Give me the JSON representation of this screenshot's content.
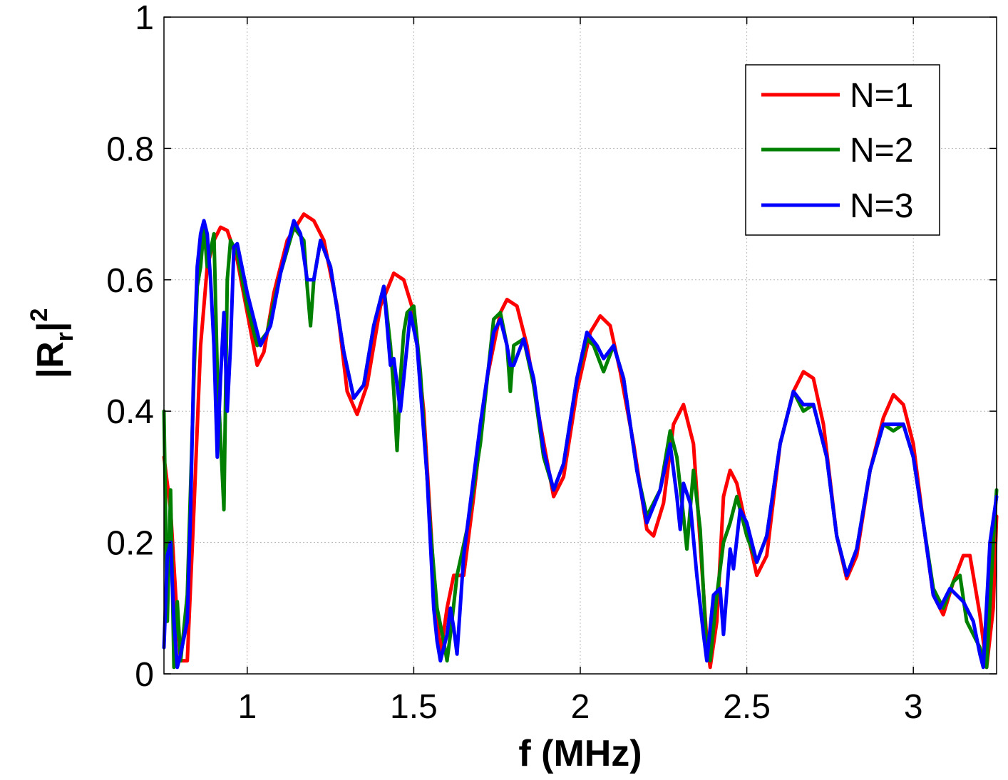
{
  "chart_data": {
    "type": "line",
    "xlabel": "f (MHz)",
    "ylabel": {
      "base": "|R",
      "sub": "r",
      "tail": "|",
      "sup": "2"
    },
    "xlim": [
      0.75,
      3.25
    ],
    "ylim": [
      0,
      1
    ],
    "xticks": [
      1,
      1.5,
      2,
      2.5,
      3
    ],
    "xtick_labels": [
      "1",
      "1.5",
      "2",
      "2.5",
      "3"
    ],
    "yticks": [
      0,
      0.2,
      0.4,
      0.6,
      0.8,
      1
    ],
    "ytick_labels": [
      "0",
      "0.2",
      "0.4",
      "0.6",
      "0.8",
      "1"
    ],
    "grid": true,
    "legend_position": "top-right",
    "series": [
      {
        "name": "N=1",
        "color": "#ff0000",
        "points": [
          [
            0.75,
            0.33
          ],
          [
            0.77,
            0.25
          ],
          [
            0.79,
            0.08
          ],
          [
            0.8,
            0.02
          ],
          [
            0.82,
            0.02
          ],
          [
            0.84,
            0.25
          ],
          [
            0.86,
            0.5
          ],
          [
            0.88,
            0.62
          ],
          [
            0.9,
            0.66
          ],
          [
            0.92,
            0.68
          ],
          [
            0.94,
            0.675
          ],
          [
            0.97,
            0.63
          ],
          [
            1.0,
            0.55
          ],
          [
            1.03,
            0.47
          ],
          [
            1.05,
            0.49
          ],
          [
            1.08,
            0.58
          ],
          [
            1.12,
            0.66
          ],
          [
            1.17,
            0.7
          ],
          [
            1.2,
            0.69
          ],
          [
            1.23,
            0.66
          ],
          [
            1.27,
            0.56
          ],
          [
            1.3,
            0.43
          ],
          [
            1.33,
            0.395
          ],
          [
            1.36,
            0.44
          ],
          [
            1.4,
            0.56
          ],
          [
            1.44,
            0.61
          ],
          [
            1.47,
            0.6
          ],
          [
            1.5,
            0.55
          ],
          [
            1.53,
            0.4
          ],
          [
            1.56,
            0.15
          ],
          [
            1.58,
            0.03
          ],
          [
            1.6,
            0.1
          ],
          [
            1.62,
            0.15
          ],
          [
            1.65,
            0.15
          ],
          [
            1.68,
            0.27
          ],
          [
            1.72,
            0.45
          ],
          [
            1.76,
            0.55
          ],
          [
            1.78,
            0.57
          ],
          [
            1.81,
            0.56
          ],
          [
            1.84,
            0.5
          ],
          [
            1.88,
            0.38
          ],
          [
            1.92,
            0.27
          ],
          [
            1.95,
            0.3
          ],
          [
            1.99,
            0.43
          ],
          [
            2.03,
            0.52
          ],
          [
            2.06,
            0.545
          ],
          [
            2.09,
            0.53
          ],
          [
            2.12,
            0.46
          ],
          [
            2.16,
            0.35
          ],
          [
            2.2,
            0.22
          ],
          [
            2.22,
            0.21
          ],
          [
            2.25,
            0.26
          ],
          [
            2.28,
            0.38
          ],
          [
            2.31,
            0.41
          ],
          [
            2.34,
            0.35
          ],
          [
            2.36,
            0.2
          ],
          [
            2.38,
            0.05
          ],
          [
            2.39,
            0.01
          ],
          [
            2.41,
            0.08
          ],
          [
            2.43,
            0.27
          ],
          [
            2.45,
            0.31
          ],
          [
            2.47,
            0.29
          ],
          [
            2.5,
            0.22
          ],
          [
            2.53,
            0.15
          ],
          [
            2.56,
            0.18
          ],
          [
            2.6,
            0.35
          ],
          [
            2.64,
            0.43
          ],
          [
            2.67,
            0.46
          ],
          [
            2.7,
            0.45
          ],
          [
            2.73,
            0.38
          ],
          [
            2.77,
            0.21
          ],
          [
            2.8,
            0.145
          ],
          [
            2.83,
            0.18
          ],
          [
            2.87,
            0.31
          ],
          [
            2.91,
            0.39
          ],
          [
            2.94,
            0.425
          ],
          [
            2.97,
            0.41
          ],
          [
            3.0,
            0.35
          ],
          [
            3.03,
            0.23
          ],
          [
            3.06,
            0.12
          ],
          [
            3.09,
            0.09
          ],
          [
            3.12,
            0.14
          ],
          [
            3.15,
            0.18
          ],
          [
            3.17,
            0.18
          ],
          [
            3.2,
            0.09
          ],
          [
            3.22,
            0.01
          ],
          [
            3.24,
            0.1
          ],
          [
            3.25,
            0.24
          ]
        ]
      },
      {
        "name": "N=2",
        "color": "#008000",
        "points": [
          [
            0.75,
            0.4
          ],
          [
            0.76,
            0.08
          ],
          [
            0.77,
            0.28
          ],
          [
            0.78,
            0.01
          ],
          [
            0.79,
            0.11
          ],
          [
            0.8,
            0.02
          ],
          [
            0.82,
            0.12
          ],
          [
            0.84,
            0.45
          ],
          [
            0.85,
            0.59
          ],
          [
            0.86,
            0.62
          ],
          [
            0.87,
            0.68
          ],
          [
            0.88,
            0.62
          ],
          [
            0.9,
            0.67
          ],
          [
            0.91,
            0.46
          ],
          [
            0.92,
            0.36
          ],
          [
            0.93,
            0.25
          ],
          [
            0.94,
            0.6
          ],
          [
            0.95,
            0.66
          ],
          [
            0.96,
            0.65
          ],
          [
            0.97,
            0.64
          ],
          [
            1.0,
            0.56
          ],
          [
            1.03,
            0.5
          ],
          [
            1.06,
            0.52
          ],
          [
            1.1,
            0.61
          ],
          [
            1.14,
            0.68
          ],
          [
            1.17,
            0.66
          ],
          [
            1.18,
            0.59
          ],
          [
            1.19,
            0.53
          ],
          [
            1.2,
            0.6
          ],
          [
            1.22,
            0.66
          ],
          [
            1.25,
            0.62
          ],
          [
            1.29,
            0.49
          ],
          [
            1.32,
            0.42
          ],
          [
            1.35,
            0.44
          ],
          [
            1.38,
            0.53
          ],
          [
            1.41,
            0.59
          ],
          [
            1.43,
            0.5
          ],
          [
            1.44,
            0.43
          ],
          [
            1.45,
            0.34
          ],
          [
            1.46,
            0.45
          ],
          [
            1.47,
            0.52
          ],
          [
            1.48,
            0.55
          ],
          [
            1.5,
            0.56
          ],
          [
            1.52,
            0.46
          ],
          [
            1.55,
            0.22
          ],
          [
            1.57,
            0.1
          ],
          [
            1.59,
            0.05
          ],
          [
            1.6,
            0.02
          ],
          [
            1.61,
            0.06
          ],
          [
            1.63,
            0.15
          ],
          [
            1.66,
            0.22
          ],
          [
            1.7,
            0.35
          ],
          [
            1.74,
            0.54
          ],
          [
            1.76,
            0.55
          ],
          [
            1.78,
            0.5
          ],
          [
            1.79,
            0.43
          ],
          [
            1.8,
            0.5
          ],
          [
            1.83,
            0.51
          ],
          [
            1.86,
            0.44
          ],
          [
            1.89,
            0.33
          ],
          [
            1.92,
            0.28
          ],
          [
            1.95,
            0.32
          ],
          [
            1.99,
            0.45
          ],
          [
            2.02,
            0.51
          ],
          [
            2.04,
            0.5
          ],
          [
            2.07,
            0.46
          ],
          [
            2.1,
            0.5
          ],
          [
            2.13,
            0.45
          ],
          [
            2.17,
            0.31
          ],
          [
            2.2,
            0.24
          ],
          [
            2.24,
            0.28
          ],
          [
            2.27,
            0.37
          ],
          [
            2.29,
            0.33
          ],
          [
            2.31,
            0.24
          ],
          [
            2.32,
            0.19
          ],
          [
            2.34,
            0.31
          ],
          [
            2.36,
            0.22
          ],
          [
            2.38,
            0.03
          ],
          [
            2.39,
            0.02
          ],
          [
            2.41,
            0.12
          ],
          [
            2.43,
            0.2
          ],
          [
            2.45,
            0.23
          ],
          [
            2.47,
            0.27
          ],
          [
            2.5,
            0.21
          ],
          [
            2.53,
            0.17
          ],
          [
            2.56,
            0.21
          ],
          [
            2.6,
            0.35
          ],
          [
            2.64,
            0.43
          ],
          [
            2.67,
            0.4
          ],
          [
            2.7,
            0.41
          ],
          [
            2.74,
            0.33
          ],
          [
            2.77,
            0.21
          ],
          [
            2.8,
            0.15
          ],
          [
            2.83,
            0.19
          ],
          [
            2.87,
            0.31
          ],
          [
            2.91,
            0.38
          ],
          [
            2.94,
            0.37
          ],
          [
            2.97,
            0.38
          ],
          [
            3.0,
            0.33
          ],
          [
            3.03,
            0.23
          ],
          [
            3.06,
            0.13
          ],
          [
            3.09,
            0.1
          ],
          [
            3.12,
            0.14
          ],
          [
            3.14,
            0.15
          ],
          [
            3.16,
            0.08
          ],
          [
            3.18,
            0.06
          ],
          [
            3.2,
            0.04
          ],
          [
            3.22,
            0.01
          ],
          [
            3.24,
            0.2
          ],
          [
            3.25,
            0.28
          ]
        ]
      },
      {
        "name": "N=3",
        "color": "#0000ff",
        "points": [
          [
            0.75,
            0.04
          ],
          [
            0.76,
            0.18
          ],
          [
            0.77,
            0.2
          ],
          [
            0.78,
            0.08
          ],
          [
            0.79,
            0.01
          ],
          [
            0.8,
            0.03
          ],
          [
            0.82,
            0.08
          ],
          [
            0.83,
            0.25
          ],
          [
            0.84,
            0.48
          ],
          [
            0.85,
            0.62
          ],
          [
            0.86,
            0.67
          ],
          [
            0.87,
            0.69
          ],
          [
            0.88,
            0.67
          ],
          [
            0.89,
            0.6
          ],
          [
            0.9,
            0.5
          ],
          [
            0.91,
            0.33
          ],
          [
            0.92,
            0.45
          ],
          [
            0.93,
            0.55
          ],
          [
            0.94,
            0.4
          ],
          [
            0.95,
            0.5
          ],
          [
            0.96,
            0.65
          ],
          [
            0.97,
            0.655
          ],
          [
            1.0,
            0.58
          ],
          [
            1.04,
            0.5
          ],
          [
            1.07,
            0.53
          ],
          [
            1.1,
            0.61
          ],
          [
            1.14,
            0.69
          ],
          [
            1.16,
            0.67
          ],
          [
            1.18,
            0.6
          ],
          [
            1.2,
            0.6
          ],
          [
            1.22,
            0.66
          ],
          [
            1.25,
            0.62
          ],
          [
            1.29,
            0.49
          ],
          [
            1.32,
            0.42
          ],
          [
            1.35,
            0.44
          ],
          [
            1.38,
            0.53
          ],
          [
            1.41,
            0.59
          ],
          [
            1.43,
            0.47
          ],
          [
            1.44,
            0.48
          ],
          [
            1.45,
            0.44
          ],
          [
            1.46,
            0.4
          ],
          [
            1.48,
            0.5
          ],
          [
            1.49,
            0.55
          ],
          [
            1.51,
            0.5
          ],
          [
            1.54,
            0.3
          ],
          [
            1.56,
            0.1
          ],
          [
            1.57,
            0.05
          ],
          [
            1.58,
            0.02
          ],
          [
            1.6,
            0.06
          ],
          [
            1.61,
            0.1
          ],
          [
            1.62,
            0.07
          ],
          [
            1.63,
            0.03
          ],
          [
            1.65,
            0.18
          ],
          [
            1.7,
            0.38
          ],
          [
            1.74,
            0.52
          ],
          [
            1.76,
            0.54
          ],
          [
            1.78,
            0.5
          ],
          [
            1.79,
            0.47
          ],
          [
            1.8,
            0.47
          ],
          [
            1.83,
            0.51
          ],
          [
            1.86,
            0.45
          ],
          [
            1.89,
            0.34
          ],
          [
            1.92,
            0.28
          ],
          [
            1.95,
            0.32
          ],
          [
            1.99,
            0.45
          ],
          [
            2.02,
            0.52
          ],
          [
            2.05,
            0.5
          ],
          [
            2.07,
            0.48
          ],
          [
            2.1,
            0.5
          ],
          [
            2.13,
            0.45
          ],
          [
            2.17,
            0.31
          ],
          [
            2.2,
            0.23
          ],
          [
            2.24,
            0.28
          ],
          [
            2.27,
            0.35
          ],
          [
            2.29,
            0.27
          ],
          [
            2.3,
            0.22
          ],
          [
            2.31,
            0.29
          ],
          [
            2.33,
            0.26
          ],
          [
            2.35,
            0.15
          ],
          [
            2.37,
            0.06
          ],
          [
            2.38,
            0.02
          ],
          [
            2.4,
            0.12
          ],
          [
            2.42,
            0.13
          ],
          [
            2.43,
            0.06
          ],
          [
            2.45,
            0.19
          ],
          [
            2.46,
            0.16
          ],
          [
            2.48,
            0.25
          ],
          [
            2.5,
            0.23
          ],
          [
            2.53,
            0.17
          ],
          [
            2.56,
            0.21
          ],
          [
            2.6,
            0.35
          ],
          [
            2.64,
            0.43
          ],
          [
            2.67,
            0.41
          ],
          [
            2.7,
            0.41
          ],
          [
            2.74,
            0.33
          ],
          [
            2.77,
            0.21
          ],
          [
            2.8,
            0.15
          ],
          [
            2.83,
            0.19
          ],
          [
            2.87,
            0.31
          ],
          [
            2.91,
            0.38
          ],
          [
            2.94,
            0.38
          ],
          [
            2.97,
            0.38
          ],
          [
            3.0,
            0.33
          ],
          [
            3.03,
            0.23
          ],
          [
            3.06,
            0.12
          ],
          [
            3.08,
            0.1
          ],
          [
            3.11,
            0.13
          ],
          [
            3.13,
            0.12
          ],
          [
            3.15,
            0.11
          ],
          [
            3.18,
            0.08
          ],
          [
            3.2,
            0.03
          ],
          [
            3.21,
            0.01
          ],
          [
            3.23,
            0.2
          ],
          [
            3.25,
            0.27
          ]
        ]
      }
    ]
  }
}
